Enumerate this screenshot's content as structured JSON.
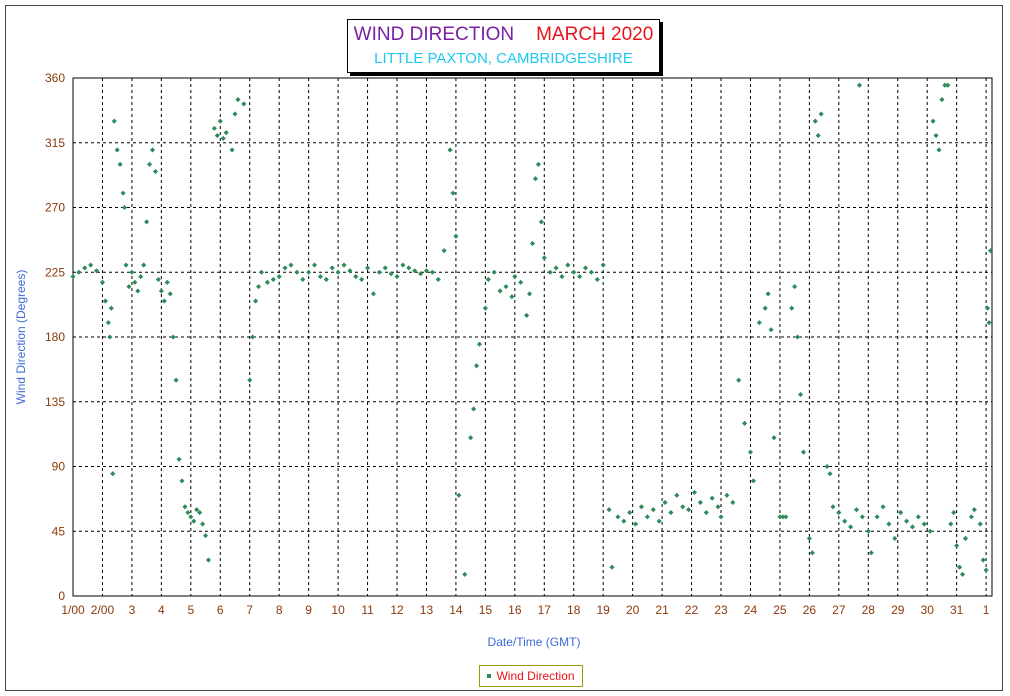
{
  "header": {
    "title_a": "WIND DIRECTION",
    "title_b": "MARCH 2020",
    "subtitle": "LITTLE PAXTON, CAMBRIDGESHIRE"
  },
  "colors": {
    "series": "#2e8b57",
    "ticks": "#8b3a0a",
    "axis_title": "#3b6ad8",
    "grid": "#000000"
  },
  "chart_data": {
    "type": "scatter",
    "title": "WIND DIRECTION MARCH 2020",
    "subtitle": "LITTLE PAXTON, CAMBRIDGESHIRE",
    "xlabel": "Date/Time (GMT)",
    "ylabel": "Wind Direction (Degrees)",
    "x_unit": "days since 1 March 2020 00:00",
    "xlim": [
      0,
      31.2
    ],
    "ylim": [
      0,
      360
    ],
    "yticks": [
      0,
      45,
      90,
      135,
      180,
      225,
      270,
      315,
      360
    ],
    "xtick_labels": [
      "1/00",
      "2/00",
      "3",
      "4",
      "5",
      "6",
      "7",
      "8",
      "9",
      "10",
      "11",
      "12",
      "13",
      "14",
      "15",
      "16",
      "17",
      "18",
      "19",
      "20",
      "21",
      "22",
      "23",
      "24",
      "25",
      "26",
      "27",
      "28",
      "29",
      "30",
      "31",
      "1"
    ],
    "grid": true,
    "legend_position": "bottom-center",
    "series": [
      {
        "name": "Wind Direction",
        "marker": "diamond",
        "points": [
          [
            0.0,
            222
          ],
          [
            0.2,
            225
          ],
          [
            0.4,
            228
          ],
          [
            0.6,
            230
          ],
          [
            0.8,
            226
          ],
          [
            1.0,
            218
          ],
          [
            1.1,
            205
          ],
          [
            1.2,
            190
          ],
          [
            1.25,
            180
          ],
          [
            1.3,
            200
          ],
          [
            1.35,
            85
          ],
          [
            1.4,
            330
          ],
          [
            1.5,
            310
          ],
          [
            1.6,
            300
          ],
          [
            1.7,
            280
          ],
          [
            1.75,
            270
          ],
          [
            1.8,
            230
          ],
          [
            1.9,
            215
          ],
          [
            2.0,
            225
          ],
          [
            2.1,
            218
          ],
          [
            2.2,
            212
          ],
          [
            2.3,
            222
          ],
          [
            2.4,
            230
          ],
          [
            2.5,
            260
          ],
          [
            2.6,
            300
          ],
          [
            2.7,
            310
          ],
          [
            2.8,
            295
          ],
          [
            2.9,
            220
          ],
          [
            3.0,
            212
          ],
          [
            3.1,
            205
          ],
          [
            3.2,
            218
          ],
          [
            3.3,
            210
          ],
          [
            3.4,
            180
          ],
          [
            3.5,
            150
          ],
          [
            3.6,
            95
          ],
          [
            3.7,
            80
          ],
          [
            3.8,
            62
          ],
          [
            3.9,
            58
          ],
          [
            4.0,
            55
          ],
          [
            4.1,
            52
          ],
          [
            4.2,
            60
          ],
          [
            4.3,
            58
          ],
          [
            4.4,
            50
          ],
          [
            4.5,
            42
          ],
          [
            4.6,
            25
          ],
          [
            4.8,
            325
          ],
          [
            4.9,
            320
          ],
          [
            5.0,
            330
          ],
          [
            5.1,
            318
          ],
          [
            5.2,
            322
          ],
          [
            5.4,
            310
          ],
          [
            5.5,
            335
          ],
          [
            5.6,
            345
          ],
          [
            5.8,
            342
          ],
          [
            6.0,
            150
          ],
          [
            6.1,
            180
          ],
          [
            6.2,
            205
          ],
          [
            6.3,
            215
          ],
          [
            6.4,
            225
          ],
          [
            6.6,
            218
          ],
          [
            6.8,
            220
          ],
          [
            7.0,
            222
          ],
          [
            7.2,
            228
          ],
          [
            7.4,
            230
          ],
          [
            7.6,
            225
          ],
          [
            7.8,
            220
          ],
          [
            8.0,
            225
          ],
          [
            8.2,
            230
          ],
          [
            8.4,
            222
          ],
          [
            8.6,
            220
          ],
          [
            8.8,
            228
          ],
          [
            9.0,
            225
          ],
          [
            9.2,
            230
          ],
          [
            9.4,
            226
          ],
          [
            9.6,
            222
          ],
          [
            9.8,
            220
          ],
          [
            10.0,
            228
          ],
          [
            10.2,
            210
          ],
          [
            10.4,
            225
          ],
          [
            10.6,
            228
          ],
          [
            10.8,
            224
          ],
          [
            11.0,
            222
          ],
          [
            11.2,
            230
          ],
          [
            11.4,
            228
          ],
          [
            11.6,
            226
          ],
          [
            11.8,
            224
          ],
          [
            12.0,
            226
          ],
          [
            12.2,
            225
          ],
          [
            12.4,
            220
          ],
          [
            12.6,
            240
          ],
          [
            12.8,
            310
          ],
          [
            12.9,
            280
          ],
          [
            13.0,
            250
          ],
          [
            13.1,
            70
          ],
          [
            13.3,
            15
          ],
          [
            13.5,
            110
          ],
          [
            13.6,
            130
          ],
          [
            13.7,
            160
          ],
          [
            13.8,
            175
          ],
          [
            14.0,
            200
          ],
          [
            14.1,
            220
          ],
          [
            14.3,
            225
          ],
          [
            14.5,
            212
          ],
          [
            14.7,
            215
          ],
          [
            14.9,
            208
          ],
          [
            15.0,
            222
          ],
          [
            15.2,
            218
          ],
          [
            15.4,
            195
          ],
          [
            15.5,
            210
          ],
          [
            15.6,
            245
          ],
          [
            15.7,
            290
          ],
          [
            15.8,
            300
          ],
          [
            15.9,
            260
          ],
          [
            16.0,
            235
          ],
          [
            16.2,
            225
          ],
          [
            16.4,
            228
          ],
          [
            16.6,
            222
          ],
          [
            16.8,
            230
          ],
          [
            17.0,
            225
          ],
          [
            17.2,
            222
          ],
          [
            17.4,
            228
          ],
          [
            17.6,
            225
          ],
          [
            17.8,
            220
          ],
          [
            18.0,
            230
          ],
          [
            18.2,
            60
          ],
          [
            18.3,
            20
          ],
          [
            18.5,
            55
          ],
          [
            18.7,
            52
          ],
          [
            18.9,
            58
          ],
          [
            19.1,
            50
          ],
          [
            19.3,
            62
          ],
          [
            19.5,
            55
          ],
          [
            19.7,
            60
          ],
          [
            19.9,
            52
          ],
          [
            20.1,
            65
          ],
          [
            20.3,
            58
          ],
          [
            20.5,
            70
          ],
          [
            20.7,
            62
          ],
          [
            20.9,
            60
          ],
          [
            21.1,
            72
          ],
          [
            21.3,
            65
          ],
          [
            21.5,
            58
          ],
          [
            21.7,
            68
          ],
          [
            21.9,
            62
          ],
          [
            22.0,
            55
          ],
          [
            22.2,
            70
          ],
          [
            22.4,
            65
          ],
          [
            22.6,
            150
          ],
          [
            22.8,
            120
          ],
          [
            23.0,
            100
          ],
          [
            23.1,
            80
          ],
          [
            23.3,
            190
          ],
          [
            23.5,
            200
          ],
          [
            23.6,
            210
          ],
          [
            23.7,
            185
          ],
          [
            23.8,
            110
          ],
          [
            24.0,
            55
          ],
          [
            24.1,
            55
          ],
          [
            24.2,
            55
          ],
          [
            24.4,
            200
          ],
          [
            24.5,
            215
          ],
          [
            24.6,
            180
          ],
          [
            24.7,
            140
          ],
          [
            24.8,
            100
          ],
          [
            25.0,
            40
          ],
          [
            25.1,
            30
          ],
          [
            25.2,
            330
          ],
          [
            25.3,
            320
          ],
          [
            25.4,
            335
          ],
          [
            25.6,
            90
          ],
          [
            25.7,
            85
          ],
          [
            25.8,
            62
          ],
          [
            26.0,
            58
          ],
          [
            26.2,
            52
          ],
          [
            26.4,
            48
          ],
          [
            26.6,
            60
          ],
          [
            26.7,
            355
          ],
          [
            26.8,
            55
          ],
          [
            27.0,
            45
          ],
          [
            27.1,
            30
          ],
          [
            27.3,
            55
          ],
          [
            27.5,
            62
          ],
          [
            27.7,
            50
          ],
          [
            27.9,
            40
          ],
          [
            28.1,
            58
          ],
          [
            28.3,
            52
          ],
          [
            28.5,
            48
          ],
          [
            28.7,
            55
          ],
          [
            28.9,
            50
          ],
          [
            29.1,
            45
          ],
          [
            29.2,
            330
          ],
          [
            29.3,
            320
          ],
          [
            29.4,
            310
          ],
          [
            29.5,
            345
          ],
          [
            29.6,
            355
          ],
          [
            29.7,
            355
          ],
          [
            29.8,
            50
          ],
          [
            29.9,
            58
          ],
          [
            30.0,
            35
          ],
          [
            30.1,
            20
          ],
          [
            30.2,
            15
          ],
          [
            30.3,
            40
          ],
          [
            30.5,
            55
          ],
          [
            30.6,
            60
          ],
          [
            30.8,
            50
          ],
          [
            30.9,
            25
          ],
          [
            31.0,
            18
          ],
          [
            31.05,
            200
          ],
          [
            31.1,
            190
          ],
          [
            31.15,
            240
          ]
        ]
      }
    ],
    "legend": [
      "Wind Direction"
    ]
  }
}
